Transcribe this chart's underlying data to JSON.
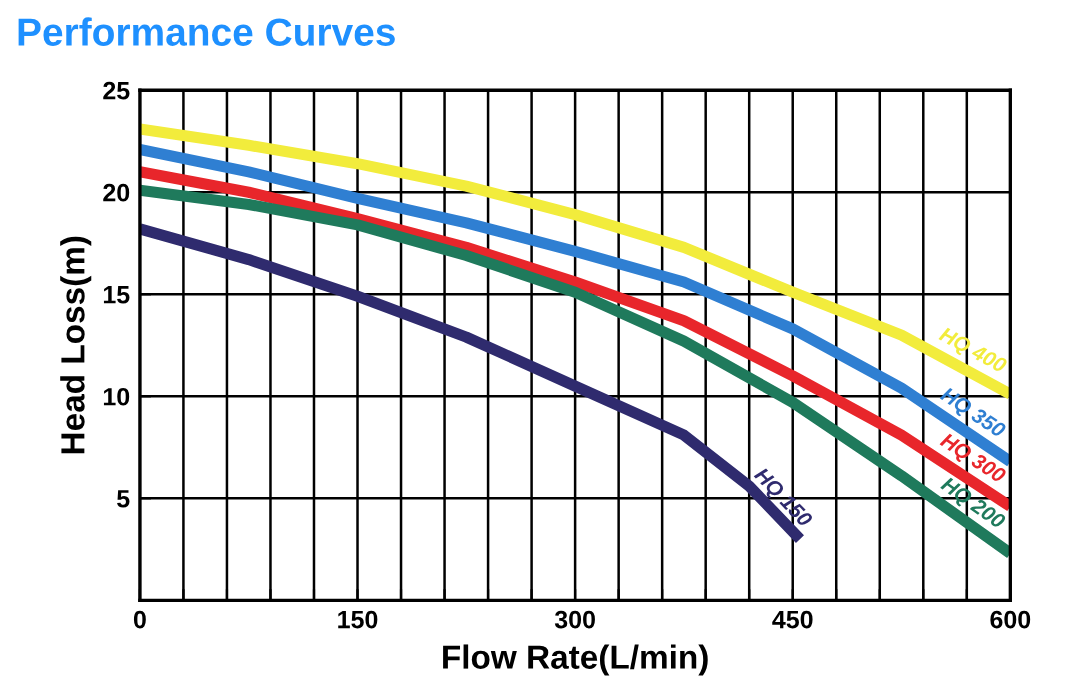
{
  "chart_data": {
    "type": "line",
    "title": "Performance Curves",
    "xlabel": "Flow Rate(L/min)",
    "ylabel": "Head Loss(m)",
    "xlim": [
      0,
      600
    ],
    "ylim": [
      0,
      25
    ],
    "xticks": [
      0,
      {
        "value": 30,
        "label": null
      },
      {
        "value": 60,
        "label": null
      },
      {
        "value": 90,
        "label": null
      },
      {
        "value": 120,
        "label": null
      },
      150,
      {
        "value": 180,
        "label": null
      },
      {
        "value": 210,
        "label": null
      },
      {
        "value": 240,
        "label": null
      },
      {
        "value": 270,
        "label": null
      },
      300,
      {
        "value": 330,
        "label": null
      },
      {
        "value": 360,
        "label": null
      },
      {
        "value": 390,
        "label": null
      },
      {
        "value": 420,
        "label": null
      },
      450,
      {
        "value": 480,
        "label": null
      },
      {
        "value": 510,
        "label": null
      },
      {
        "value": 540,
        "label": null
      },
      {
        "value": 570,
        "label": null
      },
      600
    ],
    "yticks": [
      {
        "value": 0,
        "label": null
      },
      5,
      10,
      15,
      20,
      25
    ],
    "grid": true,
    "legend": false,
    "marker": "none",
    "line_style": "solid",
    "series": [
      {
        "name": "HQ 400",
        "color": "#f2ec3c",
        "x": [
          0,
          75,
          150,
          225,
          300,
          375,
          450,
          525,
          600
        ],
        "values": [
          23.1,
          22.3,
          21.4,
          20.3,
          18.9,
          17.3,
          15.1,
          13.0,
          10.1
        ]
      },
      {
        "name": "HQ 350",
        "color": "#2f7fd2",
        "x": [
          0,
          75,
          150,
          225,
          300,
          375,
          450,
          525,
          600
        ],
        "values": [
          22.1,
          21.0,
          19.7,
          18.5,
          17.1,
          15.6,
          13.3,
          10.4,
          6.8
        ]
      },
      {
        "name": "HQ 300",
        "color": "#e8262b",
        "x": [
          0,
          75,
          150,
          225,
          300,
          375,
          450,
          525,
          600
        ],
        "values": [
          21.0,
          20.0,
          18.7,
          17.3,
          15.6,
          13.7,
          11.0,
          8.1,
          4.6
        ]
      },
      {
        "name": "HQ 200",
        "color": "#1f7a5c",
        "x": [
          0,
          75,
          150,
          225,
          300,
          375,
          450,
          525,
          600
        ],
        "values": [
          20.1,
          19.4,
          18.4,
          16.9,
          15.1,
          12.7,
          9.7,
          6.1,
          2.3
        ]
      },
      {
        "name": "HQ 150",
        "color": "#2f2b6e",
        "x": [
          0,
          75,
          150,
          225,
          300,
          375,
          420,
          455
        ],
        "values": [
          18.2,
          16.7,
          14.9,
          12.9,
          10.5,
          8.1,
          5.6,
          3.0
        ]
      }
    ]
  }
}
